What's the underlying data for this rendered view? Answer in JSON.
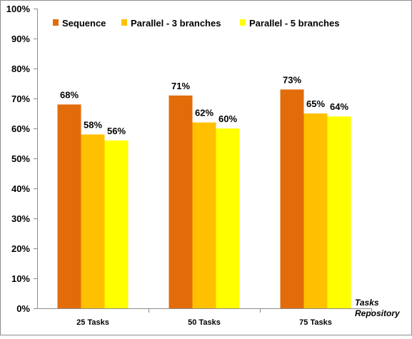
{
  "chart_data": {
    "type": "bar",
    "categories": [
      "25 Tasks",
      "50 Tasks",
      "75 Tasks"
    ],
    "series": [
      {
        "name": "Sequence",
        "values": [
          68,
          71,
          73
        ],
        "color": "#E36C0A"
      },
      {
        "name": "Parallel - 3 branches",
        "values": [
          58,
          62,
          65
        ],
        "color": "#FFC000"
      },
      {
        "name": "Parallel - 5 branches",
        "values": [
          56,
          60,
          64
        ],
        "color": "#FFFF00"
      }
    ],
    "data_labels": [
      [
        "68%",
        "71%",
        "73%"
      ],
      [
        "58%",
        "62%",
        "65%"
      ],
      [
        "56%",
        "60%",
        "64%"
      ]
    ],
    "y_ticks": [
      "0%",
      "10%",
      "20%",
      "30%",
      "40%",
      "50%",
      "60%",
      "70%",
      "80%",
      "90%",
      "100%"
    ],
    "ylim": [
      0,
      100
    ],
    "xlabel_line1": "Tasks",
    "xlabel_line2": "Repository",
    "legend_position": "top",
    "grid": false
  }
}
